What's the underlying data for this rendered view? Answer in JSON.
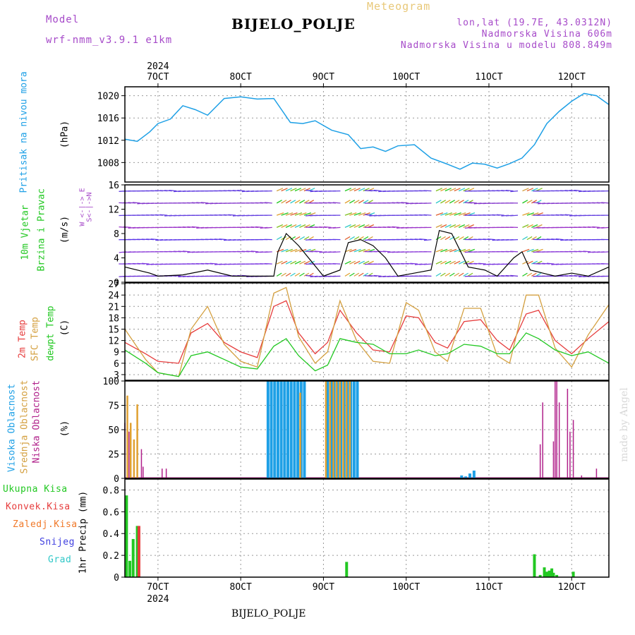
{
  "header": {
    "model_label": "Model",
    "model_name": "wrf-nmm_v3.9.1 e1km",
    "meteogram_label": "Meteogram",
    "station": "BIJELO_POLJE",
    "coords": "lon,lat (19.7E, 43.0312N)",
    "elevation": "Nadmorska Visina 606m",
    "model_elevation": "Nadmorska Visina u modelu 808.849m",
    "footer_station": "BIJELO_POLJE",
    "watermark": "made by Angel"
  },
  "colors": {
    "pressure": "#1ea0e6",
    "temp2m": "#e63c3c",
    "sfc": "#d4a040",
    "dewpt": "#22c822",
    "high_cloud": "#1ea0e6",
    "mid_cloud": "#e0a030",
    "low_cloud": "#b0208a",
    "precip_total": "#22c822",
    "precip_conv": "#e63c3c",
    "precip_frz": "#f07828",
    "snow": "#4040e0",
    "grad": "#30c8c8",
    "wind_speed": "#000000"
  },
  "axis": {
    "top_year": "2024",
    "bottom_year": "2024",
    "date_ticks": [
      "7OCT",
      "8OCT",
      "9OCT",
      "10OCT",
      "11OCT",
      "12OCT"
    ]
  },
  "panels": {
    "pressure": {
      "label": "Pritisak na nivou mora",
      "unit": "(hPa)",
      "yticks": [
        "1008",
        "1012",
        "1016",
        "1020"
      ]
    },
    "wind": {
      "label1": "10m Vjetar",
      "label2": "Brzina i Pravac",
      "unit": "(m/s)",
      "compass": "W <-|-> E",
      "compass_sub": "S<-|->N",
      "yticks": [
        "0",
        "4",
        "8",
        "12",
        "16"
      ]
    },
    "temp": {
      "label1": "2m Temp",
      "label2": "SFC Temp",
      "label3": "dewpt Temp",
      "unit": "(C)",
      "yticks": [
        "3",
        "6",
        "9",
        "12",
        "15",
        "18",
        "21",
        "24",
        "27"
      ]
    },
    "cloud": {
      "label1": "Visoka Oblacnost",
      "label2": "Srednja Oblacnost",
      "label3": "Niska Oblacnost",
      "unit": "(%)",
      "yticks": [
        "0",
        "25",
        "50",
        "75",
        "100"
      ]
    },
    "precip": {
      "label": "1hr Precip (mm)",
      "legend": [
        "Ukupna Kisa",
        "Konvek.Kisa",
        "Zaledj.Kisa",
        "Snijeg",
        "Grad"
      ],
      "yticks": [
        "0",
        "0.2",
        "0.4",
        "0.6",
        "0.8"
      ]
    }
  },
  "chart_data": [
    {
      "type": "line",
      "title": "Pritisak na nivou mora",
      "ylabel": "(hPa)",
      "ylim": [
        1004.5,
        1021.6
      ],
      "xlim_days": [
        6.6,
        12.45
      ],
      "x": [
        6.6,
        6.75,
        6.9,
        7.0,
        7.15,
        7.3,
        7.45,
        7.6,
        7.8,
        8.0,
        8.2,
        8.4,
        8.6,
        8.75,
        8.9,
        9.1,
        9.3,
        9.45,
        9.6,
        9.75,
        9.9,
        10.1,
        10.3,
        10.5,
        10.65,
        10.8,
        10.95,
        11.1,
        11.25,
        11.4,
        11.55,
        11.7,
        11.85,
        12.0,
        12.15,
        12.3,
        12.45
      ],
      "series": [
        {
          "name": "Pritisak na nivou mora",
          "values": [
            1012.2,
            1011.8,
            1013.5,
            1015.0,
            1015.8,
            1018.2,
            1017.5,
            1016.5,
            1019.5,
            1019.8,
            1019.4,
            1019.5,
            1015.2,
            1015.0,
            1015.5,
            1013.8,
            1013.0,
            1010.5,
            1010.8,
            1010.0,
            1011.0,
            1011.2,
            1008.8,
            1007.7,
            1006.8,
            1007.9,
            1007.7,
            1007.0,
            1007.8,
            1008.8,
            1011.2,
            1015.0,
            1017.2,
            1019.0,
            1020.4,
            1020.0,
            1018.4
          ]
        }
      ]
    },
    {
      "type": "line",
      "title": "10m Vjetar Brzina i Pravac",
      "ylabel": "(m/s)",
      "ylim": [
        0,
        16
      ],
      "x": [
        6.6,
        6.9,
        7.0,
        7.3,
        7.6,
        7.9,
        8.2,
        8.4,
        8.45,
        8.55,
        8.7,
        8.85,
        9.0,
        9.2,
        9.3,
        9.45,
        9.6,
        9.75,
        9.9,
        10.1,
        10.3,
        10.4,
        10.55,
        10.75,
        10.95,
        11.1,
        11.3,
        11.4,
        11.5,
        11.65,
        11.8,
        12.0,
        12.2,
        12.45
      ],
      "series": [
        {
          "name": "10m Vjetar",
          "values": [
            2.5,
            1.5,
            1.0,
            1.2,
            2.0,
            1.0,
            1.0,
            1.0,
            5.0,
            8.0,
            6.0,
            3.5,
            1.0,
            2.0,
            6.5,
            7.0,
            6.0,
            4.0,
            1.0,
            1.5,
            2.0,
            8.5,
            8.0,
            2.5,
            2.0,
            1.0,
            4.0,
            5.0,
            2.0,
            1.5,
            1.0,
            1.5,
            1.0,
            2.5
          ]
        }
      ]
    },
    {
      "type": "line",
      "title": "2m Temp / SFC Temp / dewpt Temp",
      "ylabel": "(C)",
      "ylim": [
        1.5,
        27.2
      ],
      "x": [
        6.6,
        6.85,
        7.0,
        7.25,
        7.4,
        7.6,
        7.8,
        8.0,
        8.2,
        8.4,
        8.55,
        8.7,
        8.9,
        9.05,
        9.2,
        9.4,
        9.6,
        9.8,
        10.0,
        10.15,
        10.35,
        10.5,
        10.7,
        10.9,
        11.1,
        11.25,
        11.45,
        11.6,
        11.8,
        12.0,
        12.2,
        12.45
      ],
      "series": [
        {
          "name": "2m Temp",
          "values": [
            11.5,
            8.5,
            6.5,
            6.0,
            14.0,
            16.5,
            11.5,
            9.0,
            7.5,
            21.0,
            22.5,
            14.0,
            8.5,
            11.5,
            20.0,
            14.0,
            9.5,
            9.0,
            18.5,
            18.0,
            11.5,
            10.0,
            17.0,
            17.5,
            12.0,
            9.5,
            19.0,
            20.0,
            12.0,
            8.5,
            12.5,
            17.0
          ]
        },
        {
          "name": "SFC Temp",
          "values": [
            15.0,
            7.0,
            3.5,
            2.5,
            15.0,
            21.0,
            11.0,
            6.5,
            5.0,
            24.5,
            26.0,
            13.0,
            6.0,
            9.0,
            22.5,
            12.0,
            6.5,
            6.0,
            22.0,
            20.0,
            9.0,
            6.5,
            20.5,
            20.5,
            8.0,
            6.0,
            24.0,
            24.0,
            10.0,
            5.0,
            13.5,
            21.5
          ]
        },
        {
          "name": "dewpt Temp",
          "values": [
            9.5,
            6.0,
            3.5,
            2.5,
            8.0,
            9.0,
            7.0,
            5.0,
            4.5,
            10.5,
            12.5,
            8.0,
            4.0,
            5.5,
            12.5,
            11.5,
            11.0,
            8.5,
            8.5,
            9.5,
            8.0,
            8.5,
            11.0,
            10.5,
            8.5,
            8.5,
            14.0,
            12.5,
            9.5,
            8.0,
            9.0,
            6.0
          ]
        }
      ]
    },
    {
      "type": "bar",
      "title": "Visoka / Srednja / Niska Oblacnost",
      "ylabel": "(%)",
      "ylim": [
        0,
        100
      ],
      "series": [
        {
          "name": "Visoka Oblacnost",
          "x": [
            8.33,
            8.37,
            8.41,
            8.45,
            8.49,
            8.53,
            8.57,
            8.61,
            8.65,
            8.69,
            8.73,
            8.77,
            9.05,
            9.1,
            9.13,
            9.17,
            9.21,
            9.25,
            9.29,
            9.33,
            9.37,
            9.41,
            10.67,
            10.72,
            10.77,
            10.82
          ],
          "values": [
            100,
            100,
            100,
            100,
            100,
            100,
            100,
            100,
            100,
            100,
            100,
            100,
            100,
            100,
            100,
            100,
            100,
            100,
            100,
            100,
            100,
            100,
            3,
            2,
            5,
            8
          ]
        },
        {
          "name": "Srednja Oblacnost",
          "x": [
            6.63,
            6.67,
            6.71,
            6.75,
            8.72,
            9.03,
            9.08,
            9.12,
            9.16,
            9.2,
            9.24,
            9.28,
            9.32
          ],
          "values": [
            85,
            57,
            40,
            76,
            88,
            100,
            100,
            100,
            100,
            100,
            100,
            100,
            100
          ]
        },
        {
          "name": "Niska Oblacnost",
          "x": [
            6.6,
            6.65,
            6.8,
            6.82,
            7.05,
            7.1,
            11.62,
            11.65,
            11.78,
            11.8,
            11.82,
            11.85,
            11.95,
            11.98,
            12.02,
            12.12,
            12.3
          ],
          "values": [
            57,
            48,
            30,
            12,
            10,
            10,
            35,
            78,
            38,
            100,
            100,
            78,
            92,
            48,
            60,
            3,
            10
          ]
        }
      ]
    },
    {
      "type": "bar",
      "title": "1hr Precip (mm)",
      "ylabel": "1hr Precip (mm)",
      "ylim": [
        0,
        0.9
      ],
      "series": [
        {
          "name": "Ukupna Kisa",
          "x": [
            6.62,
            6.66,
            6.7,
            6.75,
            9.28,
            11.55,
            11.62,
            11.67,
            11.7,
            11.73,
            11.76,
            11.78,
            11.82,
            12.02
          ],
          "values": [
            0.75,
            0.15,
            0.35,
            0.47,
            0.14,
            0.21,
            0.02,
            0.09,
            0.05,
            0.06,
            0.08,
            0.04,
            0.02,
            0.05
          ]
        },
        {
          "name": "Konvek.Kisa",
          "x": [
            6.77
          ],
          "values": [
            0.47
          ]
        },
        {
          "name": "Zaledj.Kisa",
          "x": [],
          "values": []
        },
        {
          "name": "Snijeg",
          "x": [],
          "values": []
        },
        {
          "name": "Grad",
          "x": [],
          "values": []
        }
      ]
    }
  ]
}
